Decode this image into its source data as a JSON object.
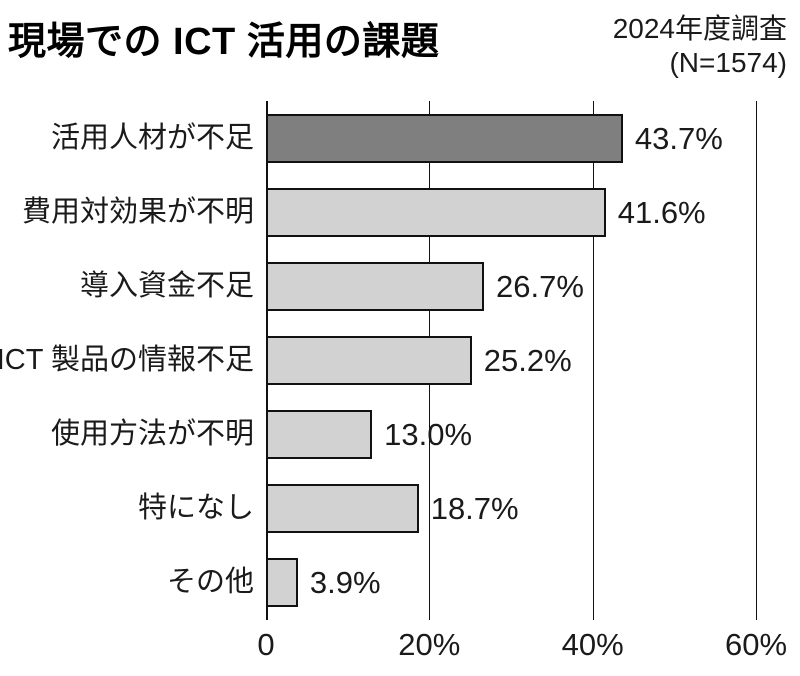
{
  "header": {
    "title": "現場での ICT 活用の課題",
    "survey_note_line1": "2024年度調査",
    "survey_note_line2": "(N=1574)"
  },
  "chart_data": {
    "type": "bar",
    "orientation": "horizontal",
    "title": "現場での ICT 活用の課題",
    "subtitle": "2024年度調査 (N=1574)",
    "categories": [
      "活用人材が不足",
      "費用対効果が不明",
      "導入資金不足",
      "ICT 製品の情報不足",
      "使用方法が不明",
      "特になし",
      "その他"
    ],
    "values": [
      43.7,
      41.6,
      26.7,
      25.2,
      13.0,
      18.7,
      3.9
    ],
    "value_labels": [
      "43.7%",
      "41.6%",
      "26.7%",
      "25.2%",
      "13.0%",
      "18.7%",
      "3.9%"
    ],
    "x_tick_labels": [
      "0",
      "20%",
      "40%",
      "60%"
    ],
    "x_tick_values": [
      0,
      20,
      40,
      60
    ],
    "xlim": [
      0,
      60
    ],
    "grid": true,
    "legend": "none",
    "colors": {
      "highlight_bar": "#7f7f7f",
      "default_bar": "#d2d2d2",
      "bar_border": "#111111",
      "gridline": "#111111",
      "text": "#1a1a1a"
    }
  }
}
